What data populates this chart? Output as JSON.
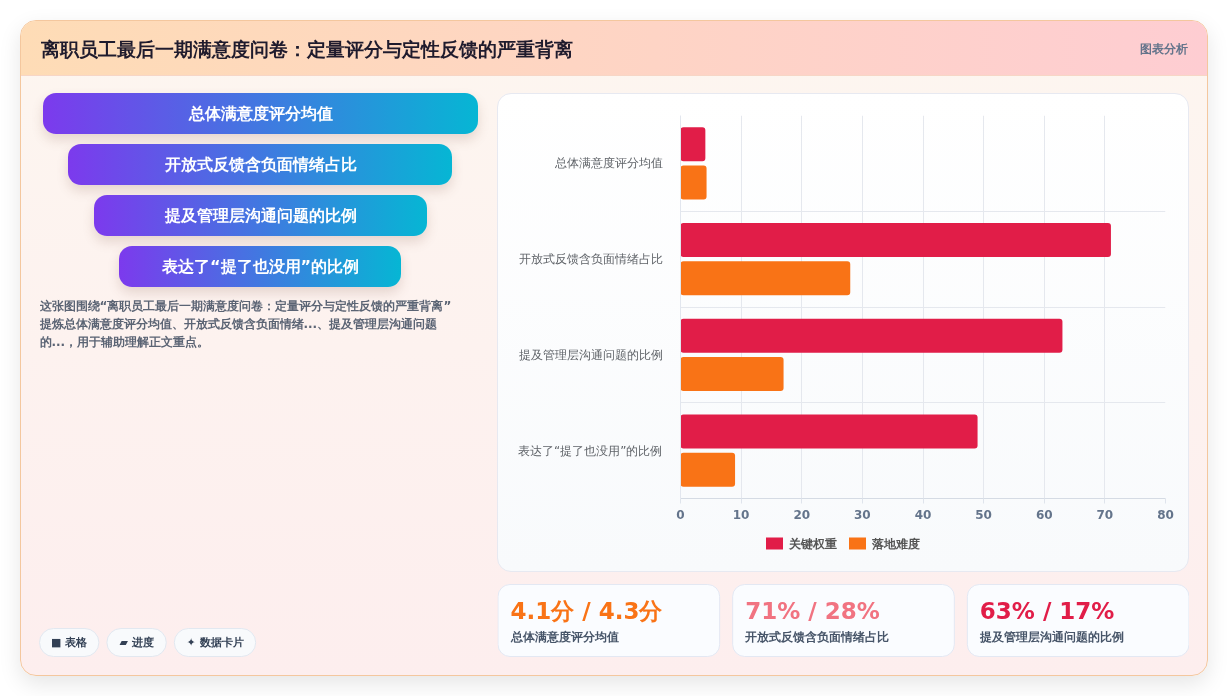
{
  "chart_data": [
    {
      "type": "other",
      "title": "离职员工最后一期满意度问卷：定量评分与定性反馈的严重背离",
      "annotations": [
        "图表分析"
      ]
    },
    {
      "type": "other",
      "annotations": [
        "总体满意度评分均值",
        "开放式反馈含负面情绪占比",
        "提及管理层沟通问题的比例",
        "表达了“提了也没用”的比例"
      ]
    },
    {
      "type": "other",
      "annotations": [
        "这张图围绕“离职员工最后一期满意度问卷：定量评分与定性反馈的严重背离”提炼总体满意度评分均值、开放式反馈含负面情绪...、提及管理层沟通问题的...，用于辅助理解正文重点。",
        "■ 表格",
        "▰ 进度",
        "✦ 数据卡片"
      ]
    },
    {
      "type": "bar",
      "orientation": "horizontal",
      "categories": [
        "总体满意度评分均值",
        "开放式反馈含负面情绪占比",
        "提及管理层沟通问题的比例",
        "表达了“提了也没用”的比例"
      ],
      "series": [
        {
          "name": "关键权重",
          "color": "#e11d48",
          "values": [
            4.1,
            71,
            63,
            49
          ]
        },
        {
          "name": "落地难度",
          "color": "#f97316",
          "values": [
            4.3,
            28,
            17,
            9
          ]
        }
      ],
      "xlim": [
        0,
        80
      ],
      "xticks": [
        0,
        10,
        20,
        30,
        40,
        50,
        60,
        70,
        80
      ],
      "grid": true,
      "legend": "bottom"
    },
    {
      "type": "other",
      "annotations": [
        "4.1分 / 4.3分",
        "总体满意度评分均值",
        "71% / 28%",
        "开放式反馈含负面情绪占比",
        "63% / 17%",
        "提及管理层沟通问题的比例"
      ],
      "colors": [
        "#f97316",
        "#f17381",
        "#e11d48"
      ]
    }
  ]
}
